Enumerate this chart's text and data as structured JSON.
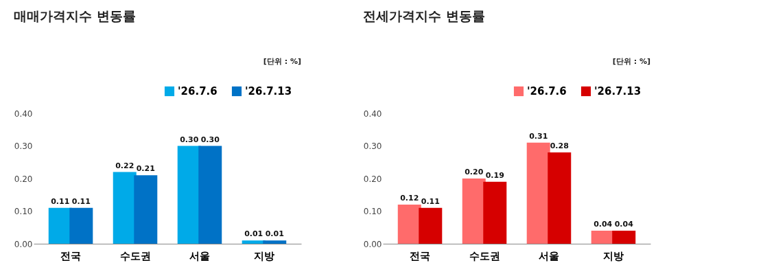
{
  "chart_data": [
    {
      "type": "bar",
      "title": "매매가격지수 변동률",
      "annotations": [
        "[단위 : %]"
      ],
      "categories": [
        "전국",
        "수도권",
        "서울",
        "지방"
      ],
      "series": [
        {
          "name": "'26.7.6",
          "color": "#00aae8",
          "values": [
            0.11,
            0.22,
            0.3,
            0.01
          ],
          "value_labels": [
            "0.11",
            "0.22",
            "0.30",
            "0.01"
          ]
        },
        {
          "name": "'26.7.13",
          "color": "#0072c6",
          "values": [
            0.11,
            0.21,
            0.3,
            0.01
          ],
          "value_labels": [
            "0.11",
            "0.21",
            "0.30",
            "0.01"
          ]
        }
      ],
      "ylim": [
        0,
        0.4
      ],
      "yticks": [
        {
          "value": 0,
          "label": "0.00"
        },
        {
          "value": 0.1,
          "label": "0.10"
        },
        {
          "value": 0.2,
          "label": "0.20"
        },
        {
          "value": 0.3,
          "label": "0.30"
        },
        {
          "value": 0.4,
          "label": "0.40"
        }
      ],
      "grid": false,
      "legend": "top right"
    },
    {
      "type": "bar",
      "title": "전세가격지수 변동률",
      "annotations": [
        "[단위 : %]"
      ],
      "categories": [
        "전국",
        "수도권",
        "서울",
        "지방"
      ],
      "series": [
        {
          "name": "'26.7.6",
          "color": "#ff6b6b",
          "values": [
            0.12,
            0.2,
            0.31,
            0.04
          ],
          "value_labels": [
            "0.12",
            "0.20",
            "0.31",
            "0.04"
          ]
        },
        {
          "name": "'26.7.13",
          "color": "#d60000",
          "values": [
            0.11,
            0.19,
            0.28,
            0.04
          ],
          "value_labels": [
            "0.11",
            "0.19",
            "0.28",
            "0.04"
          ]
        }
      ],
      "ylim": [
        0,
        0.4
      ],
      "yticks": [
        {
          "value": 0,
          "label": "0.00"
        },
        {
          "value": 0.1,
          "label": "0.10"
        },
        {
          "value": 0.2,
          "label": "0.20"
        },
        {
          "value": 0.3,
          "label": "0.30"
        },
        {
          "value": 0.4,
          "label": "0.40"
        }
      ],
      "grid": false,
      "legend": "top right"
    }
  ]
}
